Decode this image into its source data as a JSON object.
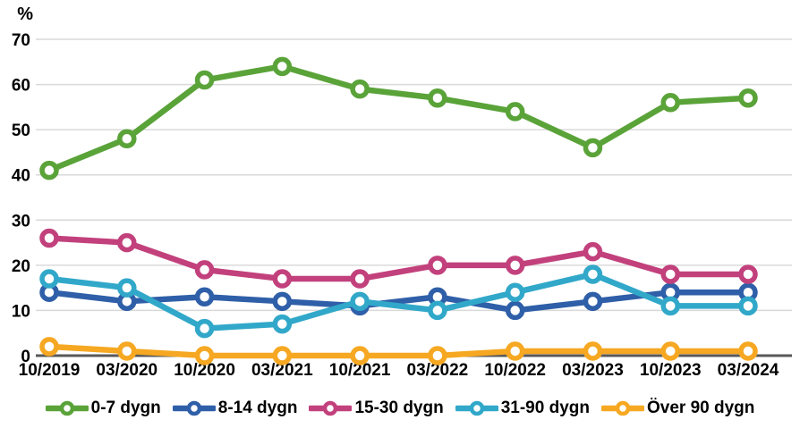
{
  "chart_data": {
    "type": "line",
    "title": "",
    "xlabel": "",
    "ylabel": "%",
    "ylim": [
      0,
      70
    ],
    "ytick_step": 10,
    "grid": true,
    "legend_position": "bottom",
    "grid_color": "#d9d9d9",
    "axis_color": "#595959",
    "marker_style": "open-circle",
    "categories": [
      "10/2019",
      "03/2020",
      "10/2020",
      "03/2021",
      "10/2021",
      "03/2022",
      "10/2022",
      "03/2023",
      "10/2023",
      "03/2024"
    ],
    "series": [
      {
        "name": "0-7 dygn",
        "color": "#5aa339",
        "values": [
          41,
          48,
          61,
          64,
          59,
          57,
          54,
          46,
          56,
          57
        ]
      },
      {
        "name": "8-14 dygn",
        "color": "#2f5fa8",
        "values": [
          14,
          12,
          13,
          12,
          11,
          13,
          10,
          12,
          14,
          14
        ]
      },
      {
        "name": "15-30 dygn",
        "color": "#c2417c",
        "values": [
          26,
          25,
          19,
          17,
          17,
          20,
          20,
          23,
          18,
          18
        ]
      },
      {
        "name": "31-90 dygn",
        "color": "#31a8c9",
        "values": [
          17,
          15,
          6,
          7,
          12,
          10,
          14,
          18,
          11,
          11
        ]
      },
      {
        "name": "Över 90 dygn",
        "color": "#f6a822",
        "values": [
          2,
          1,
          0,
          0,
          0,
          0,
          1,
          1,
          1,
          1
        ]
      }
    ]
  }
}
